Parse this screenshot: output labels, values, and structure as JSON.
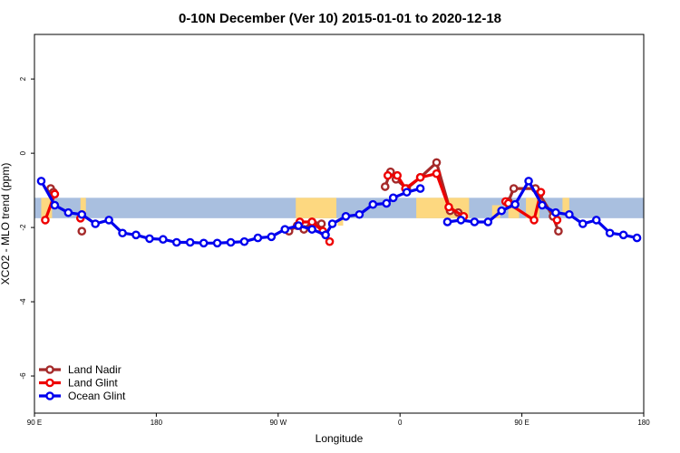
{
  "chart_data": {
    "type": "line",
    "title": "0-10N December (Ver 10)   2015-01-01 to 2020-12-18",
    "xlabel": "Longitude",
    "ylabel": "XCO2 - MLO trend (ppm)",
    "xlim": [
      0,
      450
    ],
    "ylim": [
      -7,
      3.2
    ],
    "x_ticks": [
      {
        "value": 0,
        "label": "90 E"
      },
      {
        "value": 90,
        "label": "180"
      },
      {
        "value": 180,
        "label": "90 W"
      },
      {
        "value": 270,
        "label": "0"
      },
      {
        "value": 360,
        "label": "90 E"
      },
      {
        "value": 450,
        "label": "180"
      }
    ],
    "y_ticks": [
      {
        "value": 2,
        "label": "2"
      },
      {
        "value": 0,
        "label": "0"
      },
      {
        "value": -2,
        "label": "-2"
      },
      {
        "value": -4,
        "label": "-4"
      },
      {
        "value": -6,
        "label": "-6"
      }
    ],
    "band": {
      "y_low": -1.75,
      "y_high": -1.2,
      "color": "#a9bfdf"
    },
    "land_color": "#fdd880",
    "land_regions": [
      {
        "x0": 5,
        "x1": 13,
        "y0": -1.75,
        "y1": -1.2
      },
      {
        "x0": 34,
        "x1": 38,
        "y0": -1.6,
        "y1": -1.2
      },
      {
        "x0": 193,
        "x1": 223,
        "y0": -1.75,
        "y1": -1.2
      },
      {
        "x0": 224,
        "x1": 228,
        "y0": -1.95,
        "y1": -1.75
      },
      {
        "x0": 282,
        "x1": 321,
        "y0": -1.75,
        "y1": -1.2
      },
      {
        "x0": 338,
        "x1": 344,
        "y0": -1.75,
        "y1": -1.4
      },
      {
        "x0": 350,
        "x1": 358,
        "y0": -1.75,
        "y1": -1.3
      },
      {
        "x0": 363,
        "x1": 373,
        "y0": -1.75,
        "y1": -1.2
      },
      {
        "x0": 390,
        "x1": 395,
        "y0": -1.6,
        "y1": -1.2
      }
    ],
    "series": [
      {
        "name": "Land Nadir",
        "color": "#a52a2a",
        "segments": [
          [
            [
              12,
              -0.95
            ],
            [
              14,
              -1.05
            ]
          ],
          [
            [
              35,
              -2.1
            ]
          ],
          [
            [
              188,
              -2.1
            ],
            [
              194,
              -1.95
            ],
            [
              199,
              -2.05
            ],
            [
              205,
              -1.85
            ],
            [
              212,
              -1.9
            ]
          ],
          [
            [
              259,
              -0.9
            ],
            [
              263,
              -0.5
            ],
            [
              267,
              -0.7
            ],
            [
              275,
              -0.95
            ],
            [
              285,
              -0.65
            ],
            [
              297,
              -0.25
            ],
            [
              307,
              -1.55
            ],
            [
              313,
              -1.6
            ]
          ],
          [
            [
              350,
              -1.3
            ],
            [
              354,
              -0.95
            ],
            [
              370,
              -0.95
            ],
            [
              373,
              -1.1
            ],
            [
              383,
              -1.7
            ],
            [
              387,
              -2.1
            ]
          ]
        ]
      },
      {
        "name": "Land Glint",
        "color": "#ee0000",
        "segments": [
          [
            [
              8,
              -1.8
            ],
            [
              15,
              -1.1
            ]
          ],
          [
            [
              34,
              -1.75
            ]
          ],
          [
            [
              196,
              -1.85
            ],
            [
              205,
              -1.85
            ],
            [
              213,
              -2.1
            ],
            [
              218,
              -2.38
            ]
          ],
          [
            [
              261,
              -0.6
            ],
            [
              268,
              -0.6
            ],
            [
              274,
              -0.95
            ],
            [
              285,
              -0.65
            ],
            [
              297,
              -0.55
            ],
            [
              306,
              -1.45
            ],
            [
              317,
              -1.7
            ]
          ],
          [
            [
              348,
              -1.3
            ],
            [
              350,
              -1.35
            ],
            [
              369,
              -1.8
            ],
            [
              374,
              -1.05
            ]
          ],
          [
            [
              386,
              -1.8
            ]
          ]
        ]
      },
      {
        "name": "Ocean Glint",
        "color": "#0000ee",
        "segments": [
          [
            [
              5,
              -0.75
            ],
            [
              15,
              -1.4
            ],
            [
              25,
              -1.6
            ],
            [
              35,
              -1.65
            ],
            [
              45,
              -1.9
            ],
            [
              55,
              -1.8
            ],
            [
              65,
              -2.15
            ],
            [
              75,
              -2.2
            ],
            [
              85,
              -2.3
            ],
            [
              95,
              -2.32
            ],
            [
              105,
              -2.4
            ],
            [
              115,
              -2.4
            ],
            [
              125,
              -2.42
            ],
            [
              135,
              -2.42
            ],
            [
              145,
              -2.4
            ],
            [
              155,
              -2.38
            ],
            [
              165,
              -2.28
            ],
            [
              175,
              -2.25
            ],
            [
              185,
              -2.05
            ],
            [
              195,
              -1.95
            ],
            [
              205,
              -2.05
            ],
            [
              215,
              -2.2
            ],
            [
              220,
              -1.9
            ],
            [
              230,
              -1.7
            ],
            [
              240,
              -1.65
            ],
            [
              250,
              -1.38
            ],
            [
              260,
              -1.35
            ],
            [
              265,
              -1.2
            ],
            [
              275,
              -1.05
            ],
            [
              285,
              -0.95
            ]
          ],
          [
            [
              305,
              -1.85
            ],
            [
              315,
              -1.8
            ],
            [
              325,
              -1.85
            ],
            [
              335,
              -1.85
            ],
            [
              345,
              -1.55
            ],
            [
              355,
              -1.38
            ],
            [
              365,
              -0.75
            ],
            [
              375,
              -1.4
            ],
            [
              385,
              -1.6
            ],
            [
              395,
              -1.65
            ],
            [
              405,
              -1.9
            ],
            [
              415,
              -1.8
            ],
            [
              425,
              -2.15
            ],
            [
              435,
              -2.2
            ],
            [
              445,
              -2.28
            ]
          ]
        ]
      }
    ],
    "legend": {
      "position": "bottom-left",
      "entries": [
        {
          "label": "Land Nadir",
          "color": "#a52a2a"
        },
        {
          "label": "Land Glint",
          "color": "#ee0000"
        },
        {
          "label": "Ocean Glint",
          "color": "#0000ee"
        }
      ]
    }
  }
}
